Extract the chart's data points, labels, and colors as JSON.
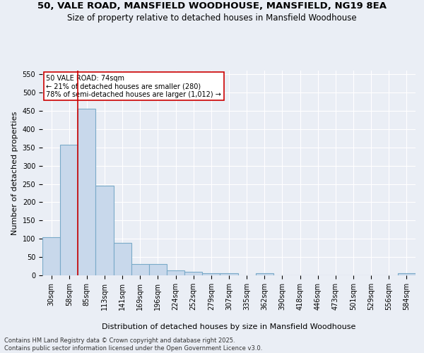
{
  "title1": "50, VALE ROAD, MANSFIELD WOODHOUSE, MANSFIELD, NG19 8EA",
  "title2": "Size of property relative to detached houses in Mansfield Woodhouse",
  "xlabel": "Distribution of detached houses by size in Mansfield Woodhouse",
  "ylabel": "Number of detached properties",
  "footnote": "Contains HM Land Registry data © Crown copyright and database right 2025.\nContains public sector information licensed under the Open Government Licence v3.0.",
  "bin_labels": [
    "30sqm",
    "58sqm",
    "85sqm",
    "113sqm",
    "141sqm",
    "169sqm",
    "196sqm",
    "224sqm",
    "252sqm",
    "279sqm",
    "307sqm",
    "335sqm",
    "362sqm",
    "390sqm",
    "418sqm",
    "446sqm",
    "473sqm",
    "501sqm",
    "529sqm",
    "556sqm",
    "584sqm"
  ],
  "bar_values": [
    105,
    357,
    456,
    245,
    88,
    31,
    31,
    13,
    9,
    5,
    5,
    0,
    5,
    0,
    0,
    0,
    0,
    0,
    0,
    0,
    5
  ],
  "bar_color": "#c8d8eb",
  "bar_edge_color": "#7aaac8",
  "vline_color": "#cc0000",
  "vline_x_index": 1.5,
  "annotation_text": "50 VALE ROAD: 74sqm\n← 21% of detached houses are smaller (280)\n78% of semi-detached houses are larger (1,012) →",
  "annotation_box_color": "#cc0000",
  "ylim": [
    0,
    560
  ],
  "yticks": [
    0,
    50,
    100,
    150,
    200,
    250,
    300,
    350,
    400,
    450,
    500,
    550
  ],
  "bg_color": "#eaeef5",
  "plot_bg_color": "#eaeef5",
  "grid_color": "#ffffff",
  "title_fontsize": 9.5,
  "subtitle_fontsize": 8.5,
  "tick_fontsize": 7,
  "label_fontsize": 8,
  "footnote_fontsize": 6
}
